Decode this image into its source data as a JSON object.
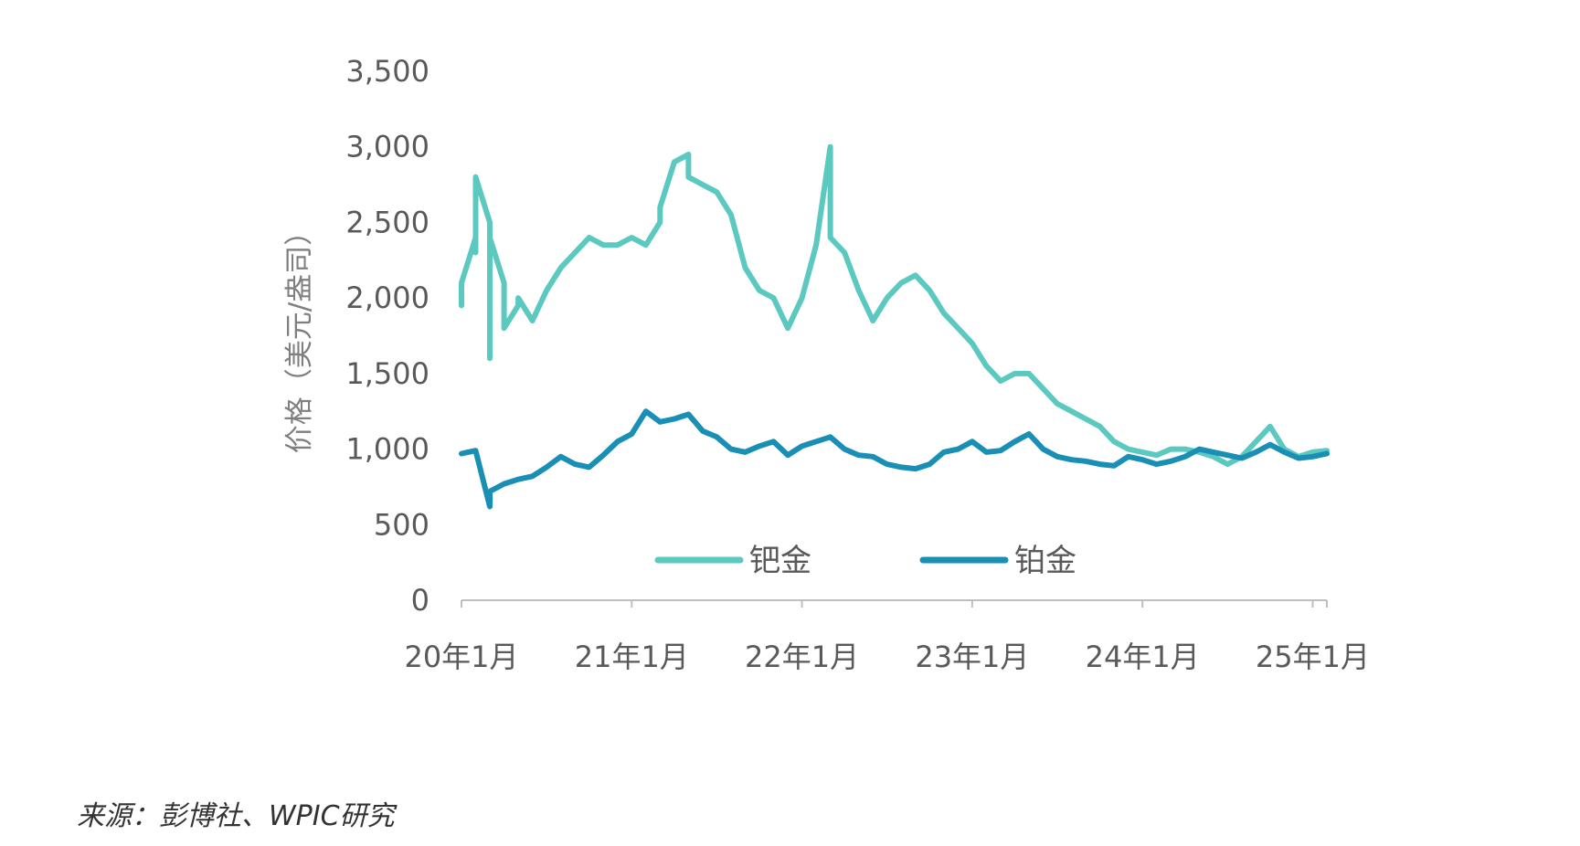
{
  "source_note": "来源：彭博社、WPIC研究",
  "colors": {
    "palladium": "#5cc9c0",
    "platinum": "#1a8fb5",
    "axis": "#bfbfbf",
    "tick_text": "#595959"
  },
  "chart_data": {
    "type": "line",
    "title": "",
    "ylabel": "价格（美元/盎司）",
    "xlabel": "",
    "ylim": [
      0,
      3500
    ],
    "yticks": [
      0,
      500,
      1000,
      1500,
      2000,
      2500,
      3000,
      3500
    ],
    "ytick_labels": [
      "0",
      "500",
      "1,000",
      "1,500",
      "2,000",
      "2,500",
      "3,000",
      "3,500"
    ],
    "xlim": [
      "2020-01",
      "2025-02"
    ],
    "xticks": [
      "2020-01",
      "2021-01",
      "2022-01",
      "2023-01",
      "2024-01",
      "2025-01"
    ],
    "xtick_labels": [
      "20年1月",
      "21年1月",
      "22年1月",
      "23年1月",
      "24年1月",
      "25年1月"
    ],
    "grid": false,
    "legend_position": "bottom-inside",
    "series": [
      {
        "name": "钯金",
        "color": "#5cc9c0",
        "x": [
          "2020-01",
          "2020-01",
          "2020-02",
          "2020-02",
          "2020-02",
          "2020-03",
          "2020-03",
          "2020-03",
          "2020-04",
          "2020-04",
          "2020-05",
          "2020-05",
          "2020-06",
          "2020-07",
          "2020-08",
          "2020-09",
          "2020-10",
          "2020-11",
          "2020-12",
          "2021-01",
          "2021-02",
          "2021-03",
          "2021-03",
          "2021-04",
          "2021-05",
          "2021-05",
          "2021-06",
          "2021-07",
          "2021-08",
          "2021-09",
          "2021-10",
          "2021-11",
          "2021-12",
          "2022-01",
          "2022-02",
          "2022-03",
          "2022-03",
          "2022-04",
          "2022-05",
          "2022-06",
          "2022-07",
          "2022-08",
          "2022-09",
          "2022-10",
          "2022-11",
          "2022-12",
          "2023-01",
          "2023-02",
          "2023-03",
          "2023-04",
          "2023-05",
          "2023-06",
          "2023-07",
          "2023-08",
          "2023-09",
          "2023-10",
          "2023-11",
          "2023-12",
          "2024-01",
          "2024-02",
          "2024-03",
          "2024-04",
          "2024-05",
          "2024-06",
          "2024-07",
          "2024-08",
          "2024-09",
          "2024-10",
          "2024-11",
          "2024-12",
          "2025-01",
          "2025-02"
        ],
        "values": [
          1950,
          2100,
          2400,
          2300,
          2800,
          2500,
          1600,
          2400,
          2100,
          1800,
          1950,
          2000,
          1850,
          2050,
          2200,
          2300,
          2400,
          2350,
          2350,
          2400,
          2350,
          2500,
          2600,
          2900,
          2950,
          2800,
          2750,
          2700,
          2550,
          2200,
          2050,
          2000,
          1800,
          2000,
          2350,
          3000,
          2400,
          2300,
          2050,
          1850,
          2000,
          2100,
          2150,
          2050,
          1900,
          1800,
          1700,
          1550,
          1450,
          1500,
          1500,
          1400,
          1300,
          1250,
          1200,
          1150,
          1050,
          1000,
          980,
          960,
          1000,
          1000,
          980,
          950,
          900,
          950,
          1050,
          1150,
          1000,
          950,
          980,
          990
        ]
      },
      {
        "name": "铂金",
        "color": "#1a8fb5",
        "x": [
          "2020-01",
          "2020-02",
          "2020-03",
          "2020-03",
          "2020-04",
          "2020-05",
          "2020-06",
          "2020-07",
          "2020-08",
          "2020-09",
          "2020-10",
          "2020-11",
          "2020-12",
          "2021-01",
          "2021-02",
          "2021-03",
          "2021-04",
          "2021-05",
          "2021-06",
          "2021-07",
          "2021-08",
          "2021-09",
          "2021-10",
          "2021-11",
          "2021-12",
          "2022-01",
          "2022-02",
          "2022-03",
          "2022-04",
          "2022-05",
          "2022-06",
          "2022-07",
          "2022-08",
          "2022-09",
          "2022-10",
          "2022-11",
          "2022-12",
          "2023-01",
          "2023-02",
          "2023-03",
          "2023-04",
          "2023-05",
          "2023-06",
          "2023-07",
          "2023-08",
          "2023-09",
          "2023-10",
          "2023-11",
          "2023-12",
          "2024-01",
          "2024-02",
          "2024-03",
          "2024-04",
          "2024-05",
          "2024-06",
          "2024-07",
          "2024-08",
          "2024-09",
          "2024-10",
          "2024-11",
          "2024-12",
          "2025-01",
          "2025-02"
        ],
        "values": [
          970,
          990,
          620,
          720,
          770,
          800,
          820,
          880,
          950,
          900,
          880,
          960,
          1050,
          1100,
          1250,
          1180,
          1200,
          1230,
          1120,
          1080,
          1000,
          980,
          1020,
          1050,
          960,
          1020,
          1050,
          1080,
          1000,
          960,
          950,
          900,
          880,
          870,
          900,
          980,
          1000,
          1050,
          980,
          990,
          1050,
          1100,
          1000,
          950,
          930,
          920,
          900,
          890,
          950,
          930,
          900,
          920,
          950,
          1000,
          980,
          960,
          940,
          980,
          1030,
          980,
          940,
          950,
          970
        ]
      }
    ]
  }
}
